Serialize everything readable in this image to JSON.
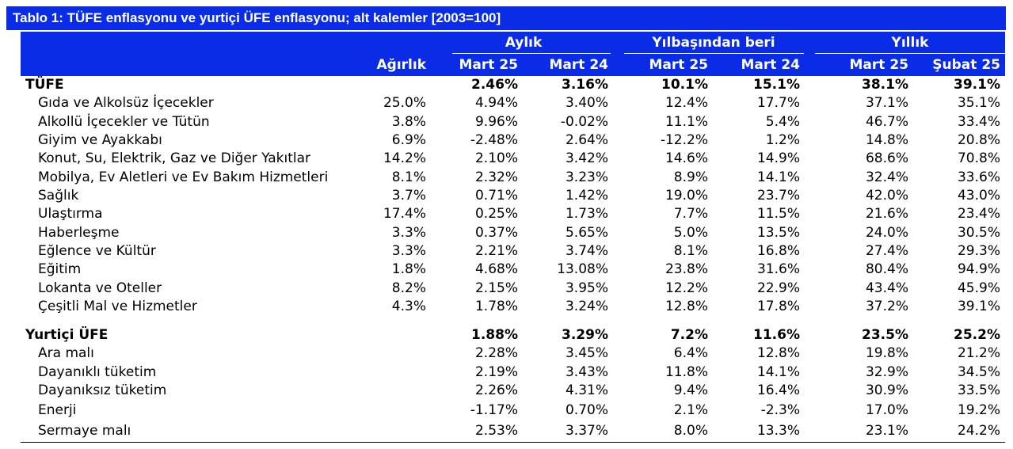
{
  "title": "Tablo 1: TÜFE enflasyonu ve yurtiçi ÜFE enflasyonu; alt kalemler [2003=100]",
  "header": {
    "groups": {
      "monthly": "Aylık",
      "ytd": "Yılbaşından beri",
      "annual": "Yıllık"
    },
    "columns": [
      "Ağırlık",
      "Mart 25",
      "Mart 24",
      "Mart 25",
      "Mart 24",
      "Mart 25",
      "Şubat 25"
    ]
  },
  "colors": {
    "header_bg": "#0a2ce6",
    "header_text": "#ffffff"
  },
  "rows": [
    {
      "label": "TÜFE",
      "bold": true,
      "values": [
        "",
        "2.46%",
        "3.16%",
        "10.1%",
        "15.1%",
        "38.1%",
        "39.1%"
      ]
    },
    {
      "label": "Gıda ve Alkolsüz İçecekler",
      "values": [
        "25.0%",
        "4.94%",
        "3.40%",
        "12.4%",
        "17.7%",
        "37.1%",
        "35.1%"
      ]
    },
    {
      "label": "Alkollü İçecekler ve Tütün",
      "values": [
        "3.8%",
        "9.96%",
        "-0.02%",
        "11.1%",
        "5.4%",
        "46.7%",
        "33.4%"
      ]
    },
    {
      "label": "Giyim ve Ayakkabı",
      "values": [
        "6.9%",
        "-2.48%",
        "2.64%",
        "-12.2%",
        "1.2%",
        "14.8%",
        "20.8%"
      ]
    },
    {
      "label": "Konut, Su, Elektrik, Gaz ve Diğer Yakıtlar",
      "values": [
        "14.2%",
        "2.10%",
        "3.42%",
        "14.6%",
        "14.9%",
        "68.6%",
        "70.8%"
      ]
    },
    {
      "label": "Mobilya, Ev Aletleri ve Ev Bakım Hizmetleri",
      "values": [
        "8.1%",
        "2.32%",
        "3.23%",
        "8.9%",
        "14.1%",
        "32.4%",
        "33.6%"
      ]
    },
    {
      "label": "Sağlık",
      "values": [
        "3.7%",
        "0.71%",
        "1.42%",
        "19.0%",
        "23.7%",
        "42.0%",
        "43.0%"
      ]
    },
    {
      "label": "Ulaştırma",
      "values": [
        "17.4%",
        "0.25%",
        "1.73%",
        "7.7%",
        "11.5%",
        "21.6%",
        "23.4%"
      ]
    },
    {
      "label": "Haberleşme",
      "values": [
        "3.3%",
        "0.37%",
        "5.65%",
        "5.0%",
        "13.5%",
        "24.0%",
        "30.5%"
      ]
    },
    {
      "label": "Eğlence ve Kültür",
      "values": [
        "3.3%",
        "2.21%",
        "3.74%",
        "8.1%",
        "16.8%",
        "27.4%",
        "29.3%"
      ]
    },
    {
      "label": "Eğitim",
      "values": [
        "1.8%",
        "4.68%",
        "13.08%",
        "23.8%",
        "31.6%",
        "80.4%",
        "94.9%"
      ]
    },
    {
      "label": "Lokanta ve Oteller",
      "values": [
        "8.2%",
        "2.15%",
        "3.95%",
        "12.2%",
        "22.9%",
        "43.4%",
        "45.9%"
      ]
    },
    {
      "label": "Çeşitli Mal ve Hizmetler",
      "values": [
        "4.3%",
        "1.78%",
        "3.24%",
        "12.8%",
        "17.8%",
        "37.2%",
        "39.1%"
      ]
    },
    {
      "label": "Yurtiçi ÜFE",
      "bold": true,
      "values": [
        "",
        "1.88%",
        "3.29%",
        "7.2%",
        "11.6%",
        "23.5%",
        "25.2%"
      ]
    },
    {
      "label": "Ara malı",
      "values": [
        "",
        "2.28%",
        "3.45%",
        "6.4%",
        "12.8%",
        "19.8%",
        "21.2%"
      ]
    },
    {
      "label": "Dayanıklı tüketim",
      "values": [
        "",
        "2.19%",
        "3.43%",
        "11.8%",
        "14.1%",
        "32.9%",
        "34.5%"
      ]
    },
    {
      "label": "Dayanıksız tüketim",
      "values": [
        "",
        "2.26%",
        "4.31%",
        "9.4%",
        "16.4%",
        "30.9%",
        "33.5%"
      ]
    },
    {
      "label": "Enerji",
      "values": [
        "",
        "-1.17%",
        "0.70%",
        "2.1%",
        "-2.3%",
        "17.0%",
        "19.2%"
      ]
    },
    {
      "label": "Sermaye malı",
      "values": [
        "",
        "2.53%",
        "3.37%",
        "8.0%",
        "13.3%",
        "23.1%",
        "24.2%"
      ]
    }
  ]
}
